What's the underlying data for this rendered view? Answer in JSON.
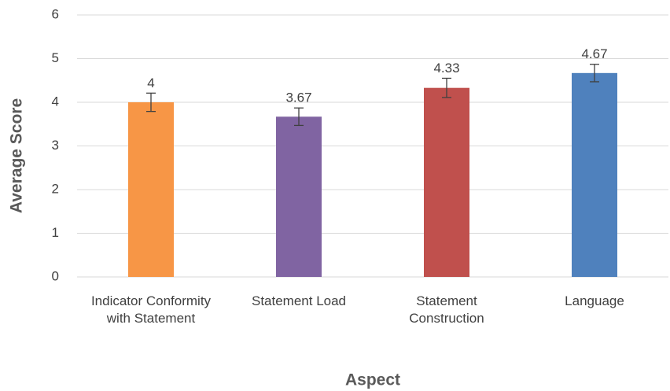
{
  "chart_data": {
    "type": "bar",
    "x_label": "Aspect",
    "y_label": "Average Score",
    "categories": [
      "Indicator Conformity with Statement",
      "Statement Load",
      "Statement Construction",
      "Language"
    ],
    "values": [
      4,
      3.67,
      4.33,
      4.67
    ],
    "errors": [
      0.21,
      0.2,
      0.22,
      0.2
    ],
    "colors": [
      "#f79646",
      "#8064a2",
      "#c0504d",
      "#4f81bd"
    ],
    "ylim": [
      0,
      6
    ],
    "yticks": [
      0,
      1,
      2,
      3,
      4,
      5,
      6
    ],
    "grid": true
  }
}
